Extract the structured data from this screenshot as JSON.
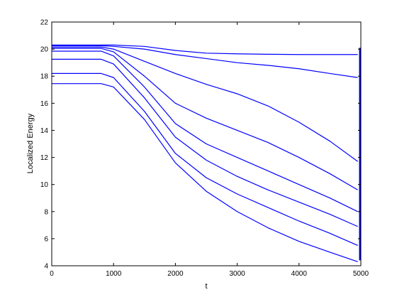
{
  "chart_data": {
    "type": "line",
    "title": "",
    "xlabel": "t",
    "ylabel": "Localized Energy",
    "xlim": [
      0,
      5000
    ],
    "ylim": [
      4,
      22
    ],
    "xticks": [
      0,
      1000,
      2000,
      3000,
      4000,
      5000
    ],
    "yticks": [
      4,
      6,
      8,
      10,
      12,
      14,
      16,
      18,
      20,
      22
    ],
    "xtick_labels": [
      "0",
      "1000",
      "2000",
      "3000",
      "4000",
      "5000"
    ],
    "ytick_labels": [
      "4",
      "6",
      "8",
      "10",
      "12",
      "14",
      "16",
      "18",
      "20",
      "22"
    ],
    "grid": false,
    "line_color": "#0000ff",
    "final_vertical_line": {
      "x": 5000,
      "y_from": 4.4,
      "y_to": 20.1
    },
    "series": [
      {
        "x": [
          0,
          800,
          1000,
          1500,
          2000,
          2500,
          3000,
          3500,
          4000,
          4500,
          4950
        ],
        "y": [
          20.3,
          20.3,
          20.3,
          20.2,
          19.9,
          19.7,
          19.65,
          19.62,
          19.6,
          19.6,
          19.6
        ]
      },
      {
        "x": [
          0,
          800,
          1000,
          1500,
          2000,
          2500,
          3000,
          3500,
          4000,
          4500,
          4950
        ],
        "y": [
          20.25,
          20.25,
          20.2,
          20.0,
          19.6,
          19.3,
          19.0,
          18.8,
          18.55,
          18.2,
          17.9
        ]
      },
      {
        "x": [
          0,
          800,
          1000,
          1500,
          2000,
          2500,
          3000,
          3500,
          4000,
          4500,
          4950
        ],
        "y": [
          20.15,
          20.15,
          20.0,
          19.1,
          18.2,
          17.4,
          16.7,
          15.8,
          14.6,
          13.2,
          11.7
        ]
      },
      {
        "x": [
          0,
          800,
          1000,
          1500,
          2000,
          2500,
          3000,
          3500,
          4000,
          4500,
          4950
        ],
        "y": [
          20.05,
          20.05,
          19.8,
          18.0,
          16.0,
          14.9,
          14.0,
          13.1,
          12.0,
          10.8,
          9.6
        ]
      },
      {
        "x": [
          0,
          800,
          1000,
          1500,
          2000,
          2500,
          3000,
          3500,
          4000,
          4500,
          4950
        ],
        "y": [
          19.85,
          19.85,
          19.5,
          17.2,
          14.5,
          13.0,
          12.0,
          11.0,
          10.0,
          9.0,
          8.0
        ]
      },
      {
        "x": [
          0,
          800,
          1000,
          1500,
          2000,
          2500,
          3000,
          3500,
          4000,
          4500,
          4950
        ],
        "y": [
          19.25,
          19.25,
          18.9,
          16.4,
          13.5,
          11.8,
          10.6,
          9.6,
          8.7,
          7.8,
          6.9
        ]
      },
      {
        "x": [
          0,
          800,
          1000,
          1500,
          2000,
          2500,
          3000,
          3500,
          4000,
          4500,
          4950
        ],
        "y": [
          18.2,
          18.2,
          17.9,
          15.4,
          12.3,
          10.5,
          9.3,
          8.3,
          7.3,
          6.4,
          5.5
        ]
      },
      {
        "x": [
          0,
          800,
          1000,
          1500,
          2000,
          2500,
          3000,
          3500,
          4000,
          4500,
          4950
        ],
        "y": [
          17.45,
          17.45,
          17.2,
          14.8,
          11.6,
          9.5,
          8.0,
          6.8,
          5.8,
          5.0,
          4.3
        ]
      }
    ]
  }
}
